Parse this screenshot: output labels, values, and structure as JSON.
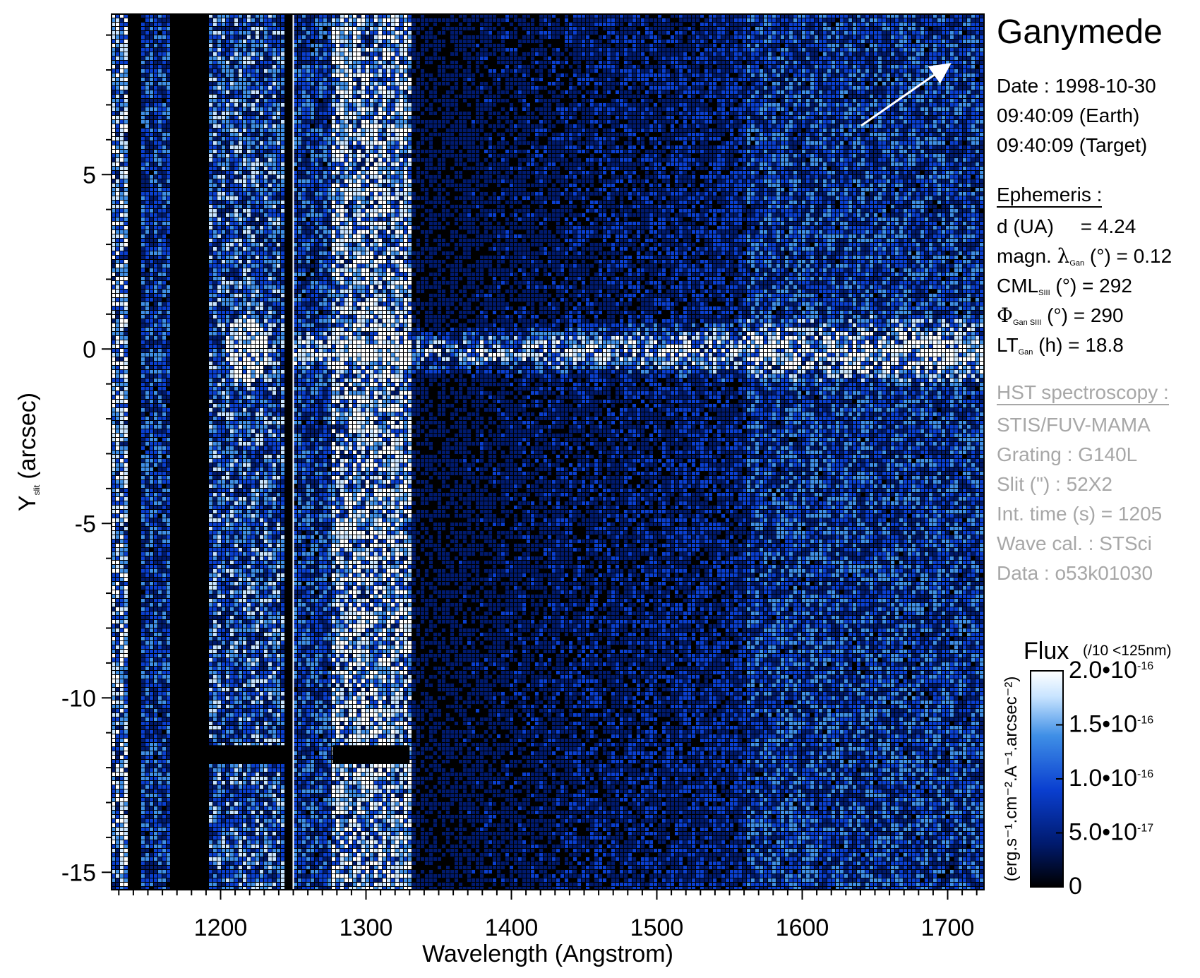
{
  "chart_data": {
    "type": "heatmap",
    "title": "Ganymede",
    "xlabel": "Wavelength (Angstrom)",
    "ylabel": "Y",
    "ylabel_sub": "slit",
    "ylabel_unit": "(arcsec)",
    "xlim": [
      1125,
      1725
    ],
    "ylim": [
      -15.5,
      9.6
    ],
    "xticks": [
      1200,
      1300,
      1400,
      1500,
      1600,
      1700
    ],
    "yticks": [
      5,
      0,
      -5,
      -10,
      -15
    ],
    "colorbar": {
      "title": "Flux",
      "note": "(/10 <125nm)",
      "unit_label": "(erg.s⁻¹.cm⁻².A⁻¹.arcsec⁻²)",
      "range": [
        0,
        2e-16
      ],
      "ticks": [
        {
          "value": 0,
          "mant": "0",
          "exp": ""
        },
        {
          "value": 5e-17,
          "mant": "5.0•10",
          "exp": "-17"
        },
        {
          "value": 1e-16,
          "mant": "1.0•10",
          "exp": "-16"
        },
        {
          "value": 1.5e-16,
          "mant": "1.5•10",
          "exp": "-16"
        },
        {
          "value": 2e-16,
          "mant": "2.0•10",
          "exp": "-16"
        }
      ],
      "colors": [
        "#000000",
        "#001a6e",
        "#0a3fd0",
        "#3f8fe6",
        "#c8e4ff",
        "#ffffff"
      ]
    },
    "features": {
      "geocoronal_line_center": 1216,
      "blank_bands": [
        [
          1135,
          1145
        ],
        [
          1165,
          1190
        ],
        [
          1244,
          1250
        ]
      ],
      "emission_trace_y": 0
    }
  },
  "info": {
    "title": "Ganymede",
    "date_lines": [
      "Date : 1998-10-30",
      "09:40:09 (Earth)",
      "09:40:09 (Target)"
    ],
    "ephemeris_heading": "Ephemeris :",
    "d_label": "d (UA)",
    "d_value": "= 4.24",
    "magn_pre": "magn. ",
    "magn_sym": "λ",
    "magn_sub": "Gan",
    "magn_post": " (°)  = 0.12",
    "cml_pre": "CML",
    "cml_sub": "SIII",
    "cml_post": " (°) = 292",
    "phi_sym": "Φ",
    "phi_sub": "Gan SIII",
    "phi_post": " (°) = 290",
    "lt_pre": "LT",
    "lt_sub": "Gan",
    "lt_post": " (h) = 18.8",
    "hst_heading": "HST spectroscopy :",
    "hst_lines": [
      "STIS/FUV-MAMA",
      "Grating : G140L",
      "Slit (\") : 52X2",
      "Int. time (s) = 1205",
      "Wave cal. : STSci",
      "Data : o53k01030"
    ],
    "text_color": "#000000",
    "gray_color": "#a7a7a7"
  }
}
